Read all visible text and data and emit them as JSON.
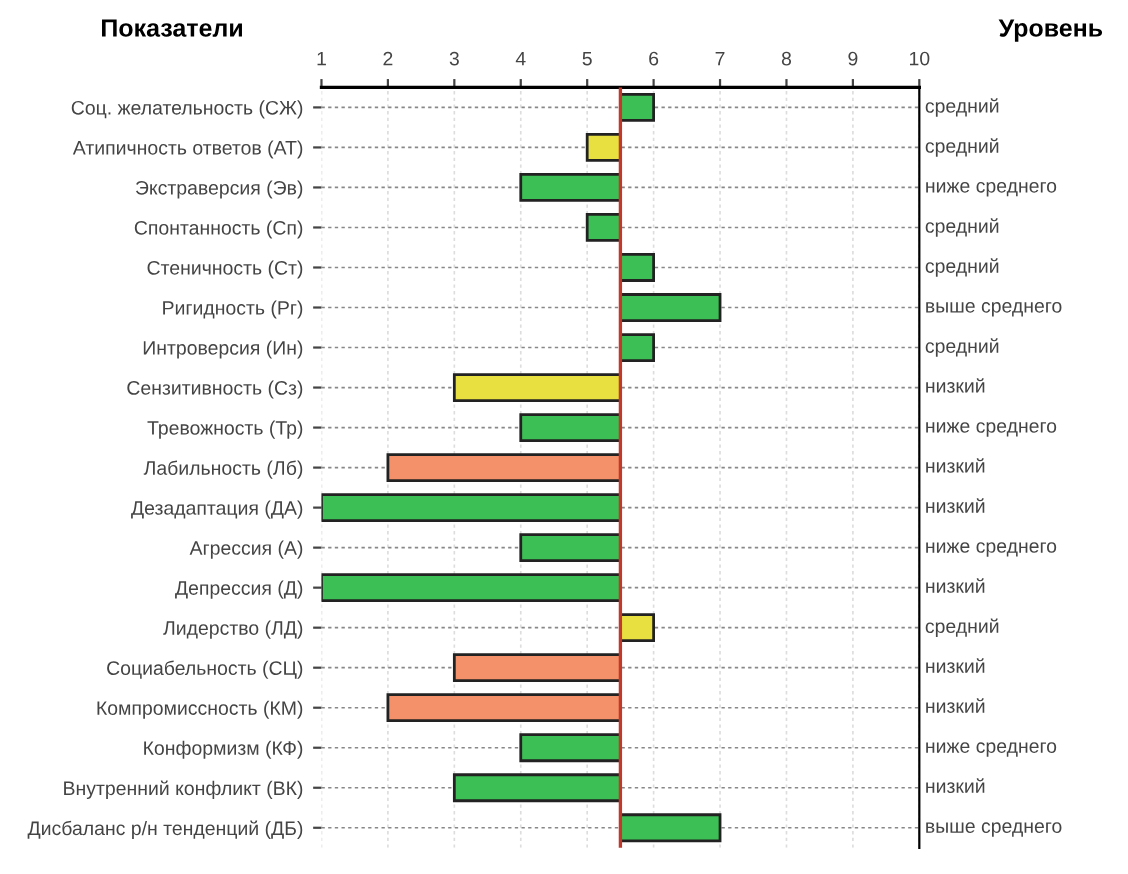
{
  "chart_data": {
    "type": "bar",
    "orientation": "horizontal",
    "ylabel": "Показатели",
    "y2label": "Уровень",
    "categories": [
      "Соц. желательность (СЖ)",
      "Атипичность ответов (АТ)",
      "Экстраверсия (Эв)",
      "Спонтанность (Сп)",
      "Стеничность (Ст)",
      "Ригидность (Рг)",
      "Интроверсия (Ин)",
      "Сензитивность (Сз)",
      "Тревожность (Тр)",
      "Лабильность (Лб)",
      "Дезадаптация (ДА)",
      "Агрессия (А)",
      "Депрессия (Д)",
      "Лидерство (ЛД)",
      "Социабельность (СЦ)",
      "Компромиссность (КМ)",
      "Конформизм (КФ)",
      "Внутренний конфликт (ВК)",
      "Дисбаланс р/н тенденций (ДБ)"
    ],
    "values": [
      0.5,
      -0.5,
      -1.5,
      -0.5,
      0.5,
      1.5,
      0.5,
      -2.5,
      -1.5,
      -3.5,
      -4.5,
      -1.5,
      -4.5,
      0.5,
      -2.5,
      -3.5,
      -1.5,
      -2.5,
      1.5
    ],
    "base": [
      5.5,
      5.5,
      5.5,
      5.5,
      5.5,
      5.5,
      5.5,
      5.5,
      5.5,
      5.5,
      5.5,
      5.5,
      5.5,
      5.5,
      5.5,
      5.5,
      5.5,
      5.5,
      5.5
    ],
    "colors": [
      "#3cbf55",
      "#e8e040",
      "#3cbf55",
      "#3cbf55",
      "#3cbf55",
      "#3cbf55",
      "#3cbf55",
      "#e8e040",
      "#3cbf55",
      "#f4906a",
      "#3cbf55",
      "#3cbf55",
      "#3cbf55",
      "#e8e040",
      "#f4906a",
      "#f4906a",
      "#3cbf55",
      "#3cbf55",
      "#3cbf55"
    ],
    "xlim": [
      1,
      10
    ],
    "xticks": [
      1,
      2,
      3,
      4,
      5,
      6,
      7,
      8,
      9,
      10
    ],
    "grid": true,
    "ref_lines": [
      {
        "axis": "x",
        "value": 5.5,
        "label": null,
        "color": "#c0392b"
      }
    ],
    "annotations": [
      "средний",
      "средний",
      "ниже среднего",
      "средний",
      "средний",
      "выше среднего",
      "средний",
      "низкий",
      "ниже среднего",
      "низкий",
      "низкий",
      "ниже среднего",
      "низкий",
      "средний",
      "низкий",
      "низкий",
      "ниже среднего",
      "низкий",
      "выше среднего"
    ]
  }
}
